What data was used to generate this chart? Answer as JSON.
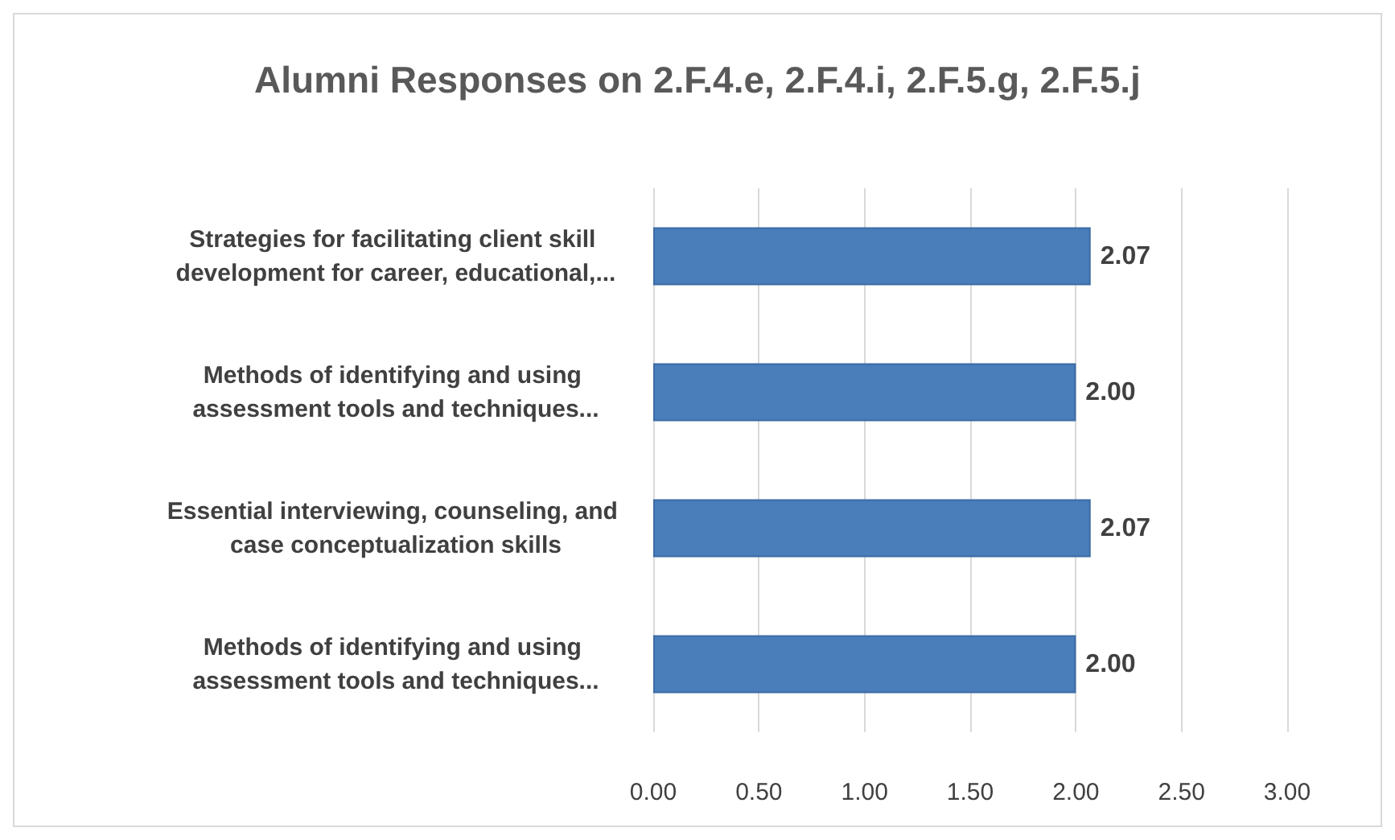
{
  "chart_data": {
    "type": "bar",
    "orientation": "horizontal",
    "title": "Alumni Responses on 2.F.4.e, 2.F.4.i, 2.F.5.g, 2.F.5.j",
    "categories": [
      "Strategies for facilitating client skill development for career, educational,...",
      "Methods of identifying and using assessment tools and techniques...",
      "Essential interviewing, counseling, and case conceptualization skills",
      "Methods of identifying and using assessment tools and techniques..."
    ],
    "values": [
      2.07,
      2.0,
      2.07,
      2.0
    ],
    "value_labels": [
      "2.07",
      "2.00",
      "2.07",
      "2.00"
    ],
    "color": "#4a7ebb",
    "xlim": [
      0,
      3
    ],
    "xticks": [
      {
        "value": 0,
        "label": "0.00"
      },
      {
        "value": 0.5,
        "label": "0.50"
      },
      {
        "value": 1,
        "label": "1.00"
      },
      {
        "value": 1.5,
        "label": "1.50"
      },
      {
        "value": 2,
        "label": "2.00"
      },
      {
        "value": 2.5,
        "label": "2.50"
      },
      {
        "value": 3,
        "label": "3.00"
      }
    ],
    "grid": "x"
  }
}
